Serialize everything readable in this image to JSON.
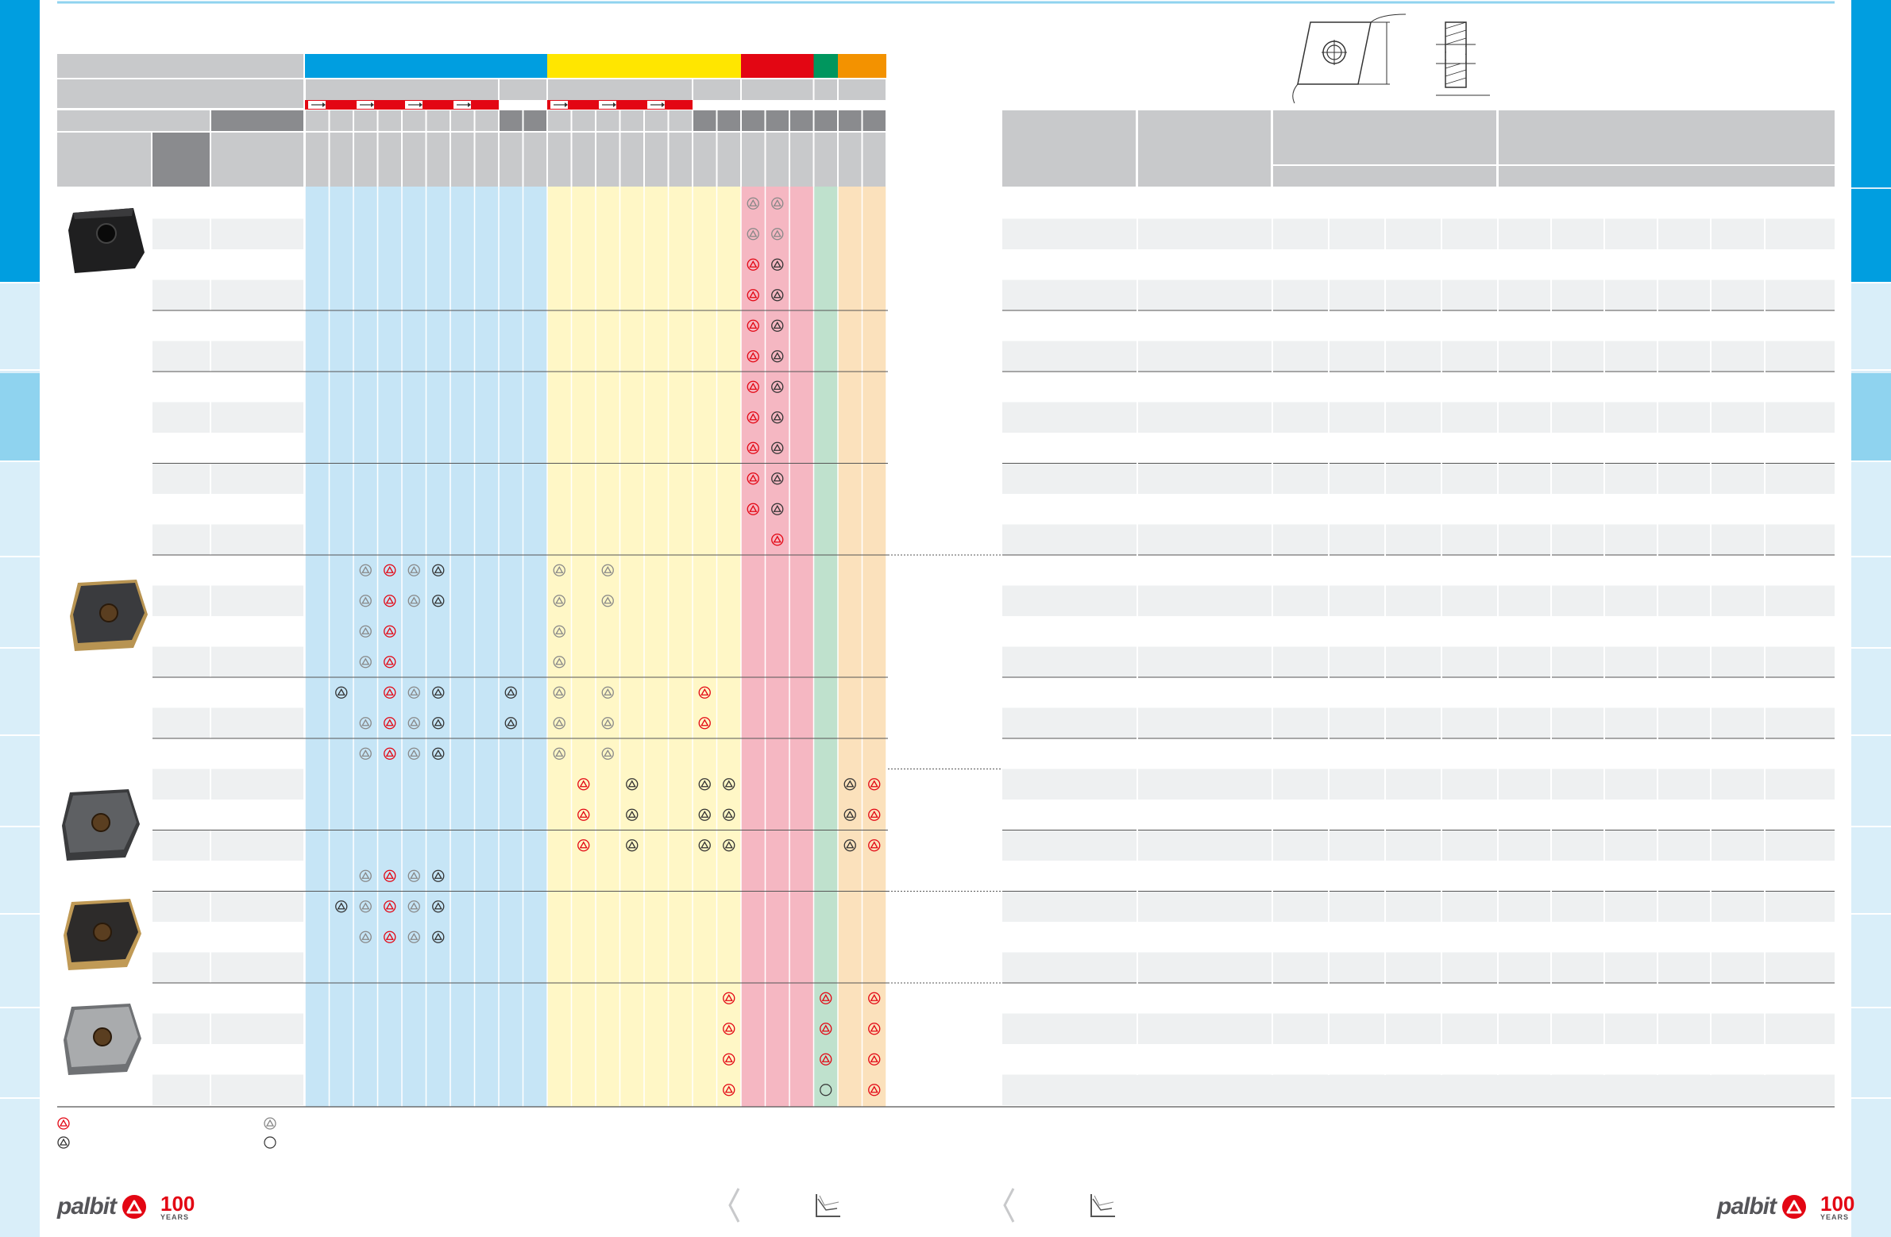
{
  "colors": {
    "blue": "#009ee0",
    "yellow": "#ffe600",
    "red": "#e30613",
    "green": "#00965e",
    "orange": "#f39200",
    "blue_light": "#c6e5f6",
    "yellow_light": "#fff7c6",
    "red_light": "#f5b7c2",
    "green_light": "#bfe1cd",
    "orange_light": "#fbe1bc",
    "header_gray": "#c8c9cb",
    "dark_gray": "#8a8b8e",
    "row_alt": "#eef0f1"
  },
  "legend": {
    "items": [
      {
        "icon": "red-triangle-grade-icon"
      },
      {
        "icon": "gray-triangle-grade-icon"
      },
      {
        "icon": "black-triangle-grade-icon"
      },
      {
        "icon": "empty-circle-icon"
      }
    ]
  },
  "icons": {
    "insert_images": [
      "cnmg-negative-insert-black-image",
      "cnmg-insert-gold-image",
      "cnmg-insert-gray-image",
      "cnmg-insert-gold-2-image",
      "cnmg-insert-silver-image"
    ],
    "logo": "palbit-logo",
    "years_badge": "palbit-100-years-badge",
    "navigation": [
      "prev-page-arrow-icon",
      "speed-feed-graph-icon"
    ]
  },
  "brand": {
    "name": "palbit",
    "years": "100",
    "years_label": "YEARS"
  }
}
